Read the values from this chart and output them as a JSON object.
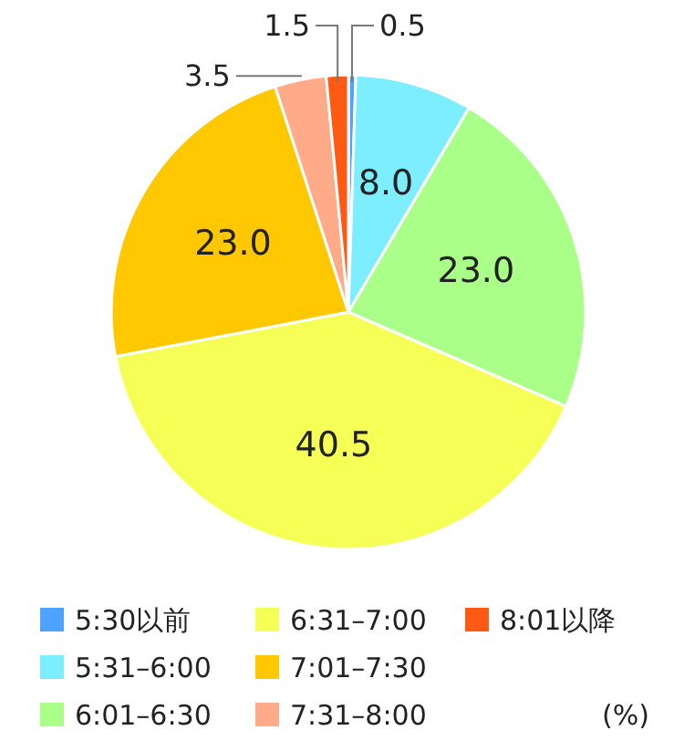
{
  "chart_data": {
    "type": "pie",
    "categories": [
      "5:30以前",
      "5:31–6:00",
      "6:01–6:30",
      "6:31–7:00",
      "7:01–7:30",
      "7:31–8:00",
      "8:01以降"
    ],
    "values": [
      0.5,
      8.0,
      23.0,
      40.5,
      23.0,
      3.5,
      1.5
    ],
    "colors": [
      "#4da3ff",
      "#7deeff",
      "#aaff88",
      "#f5ff55",
      "#ffc800",
      "#ffaa88",
      "#ff5a14"
    ],
    "value_labels": [
      "0.5",
      "8.0",
      "23.0",
      "40.5",
      "23.0",
      "3.5",
      "1.5"
    ],
    "legend": "bottom",
    "annotations": [
      "(%)"
    ]
  }
}
